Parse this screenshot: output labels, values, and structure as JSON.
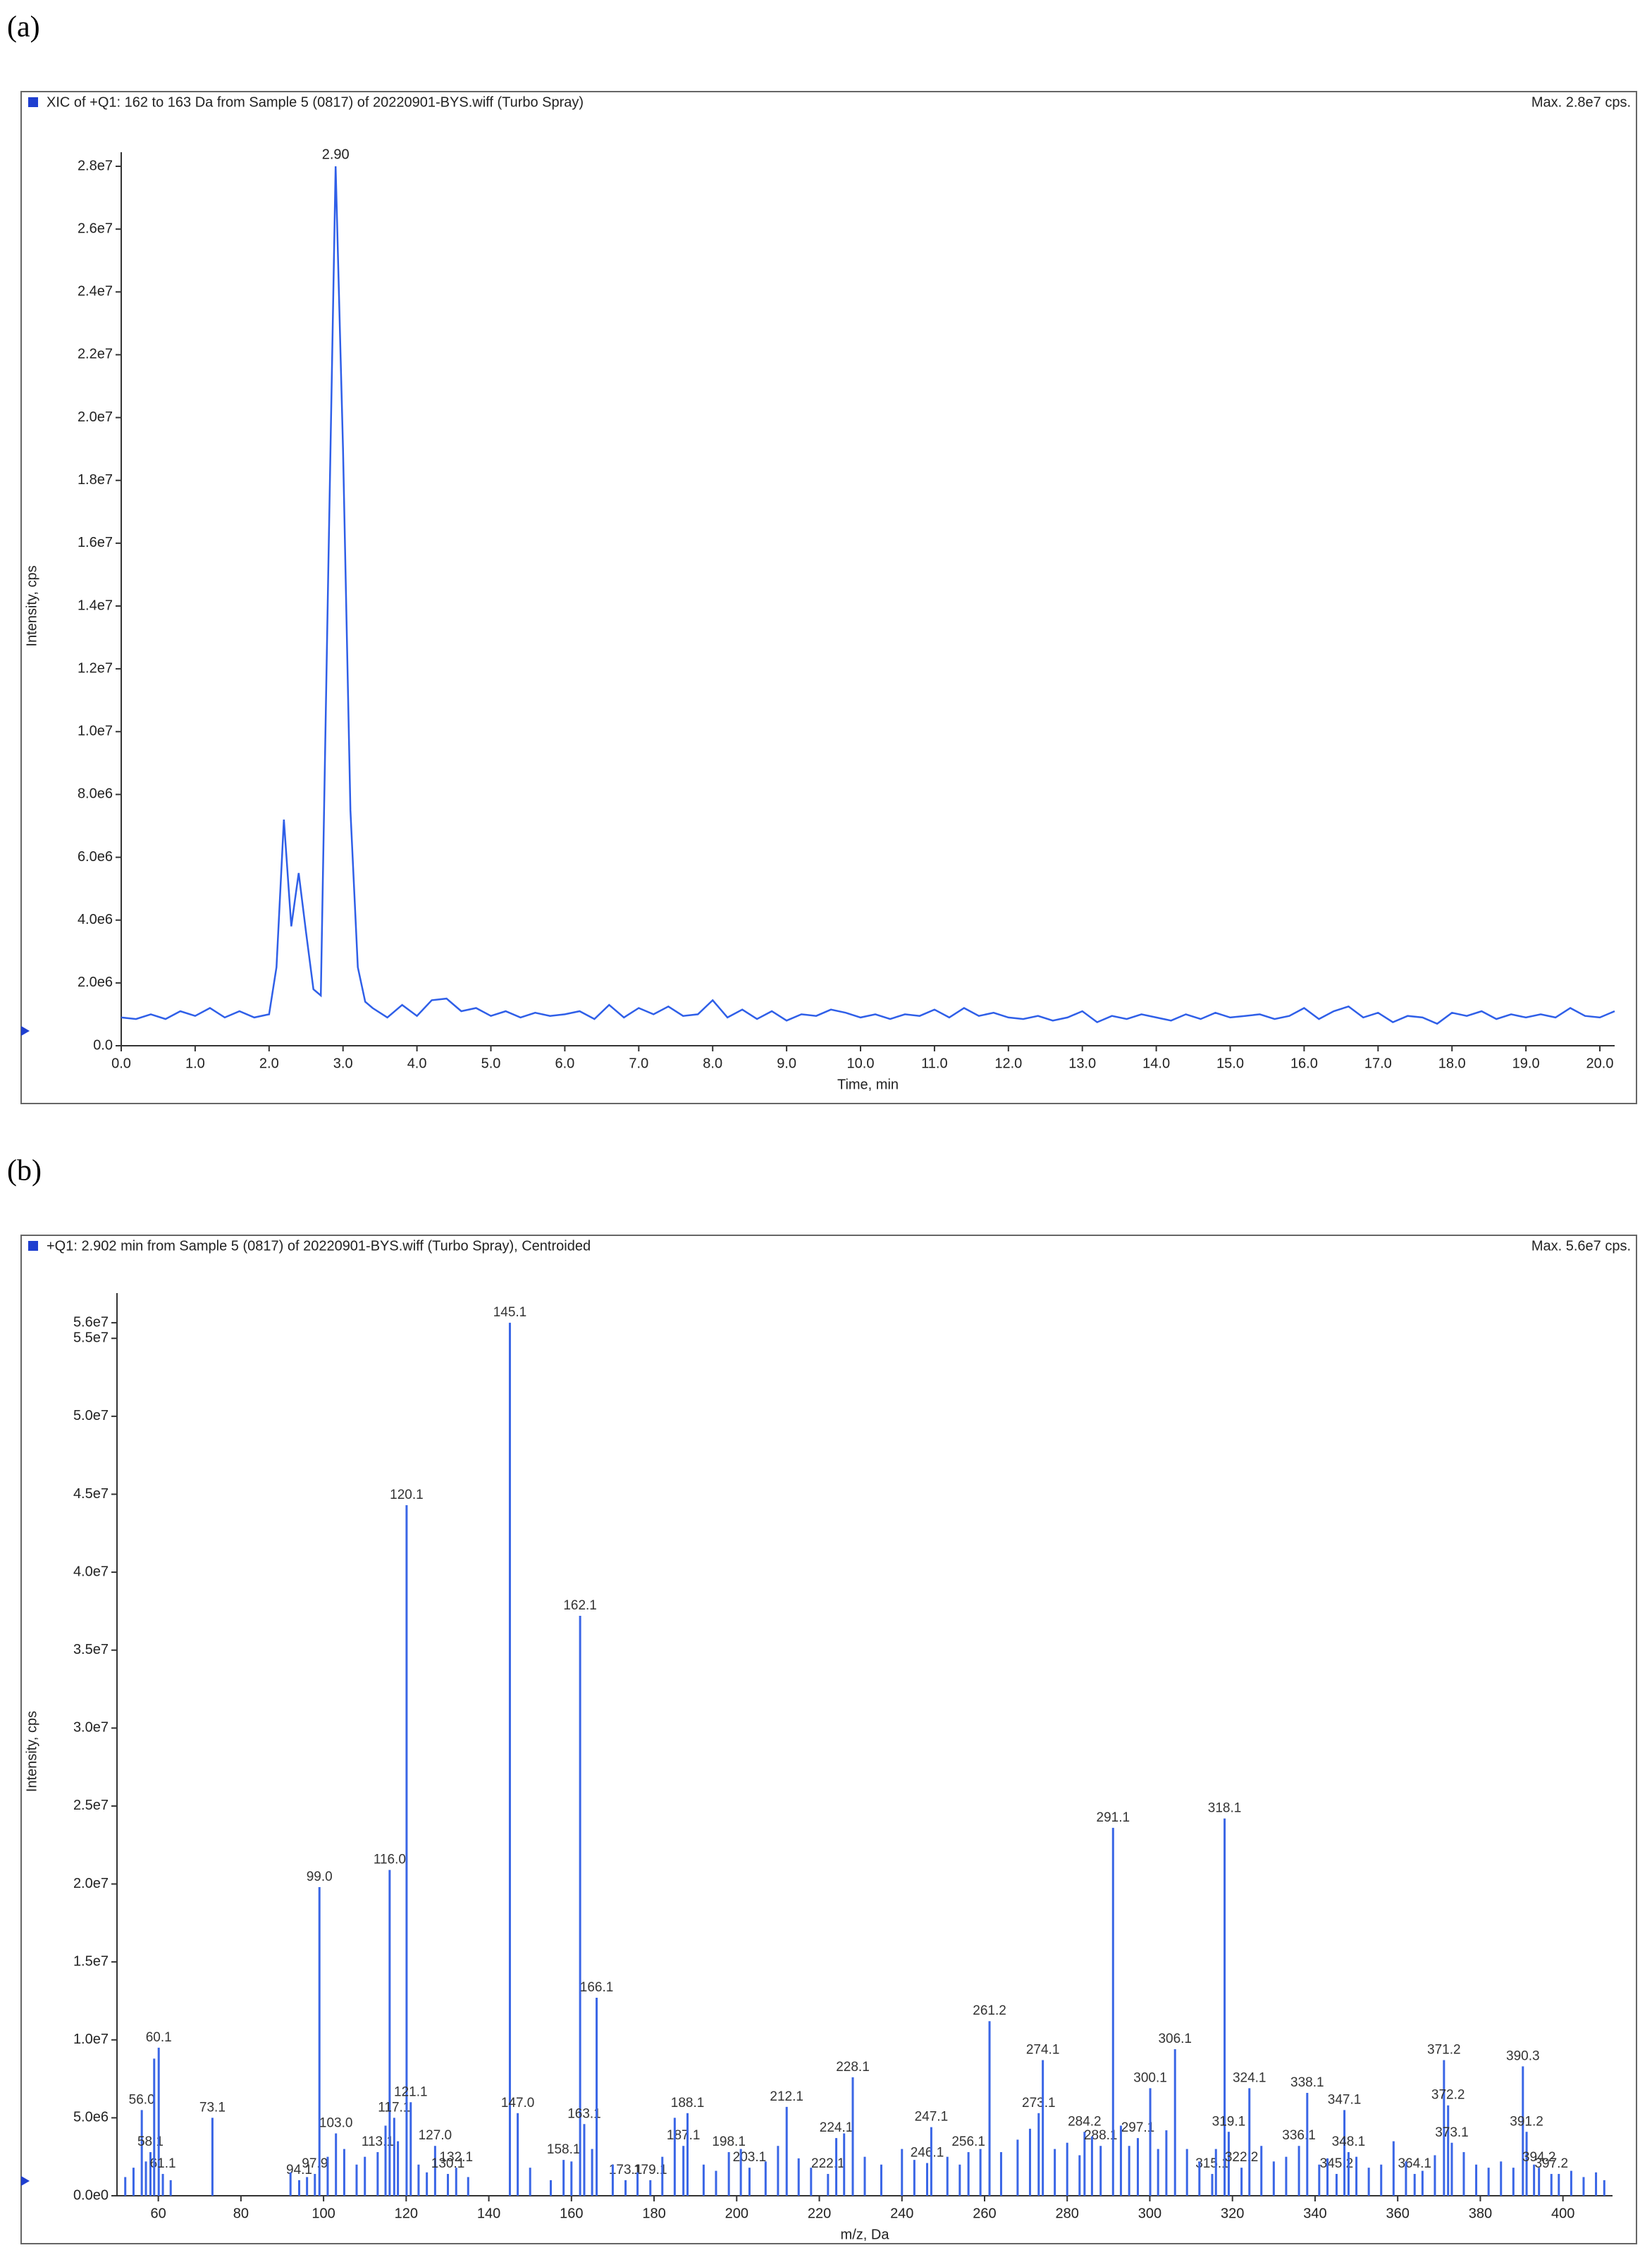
{
  "chart_data": [
    {
      "type": "line",
      "panel_label": "(a)",
      "title": "XIC of +Q1: 162 to 163 Da from Sample 5 (0817) of 20220901-BYS.wiff (Turbo Spray)",
      "max_label": "Max. 2.8e7 cps.",
      "y_label": "Intensity, cps",
      "x_label": "Time, min",
      "color": "#2f5fe8",
      "peak_label": {
        "value": 2.9,
        "label": "2.90"
      },
      "xlim": [
        0,
        20.2
      ],
      "ylim": [
        0,
        28000000
      ],
      "xticks": [
        {
          "value": 0,
          "label": "0.0"
        },
        {
          "value": 1,
          "label": "1.0"
        },
        {
          "value": 2,
          "label": "2.0"
        },
        {
          "value": 3,
          "label": "3.0"
        },
        {
          "value": 4,
          "label": "4.0"
        },
        {
          "value": 5,
          "label": "5.0"
        },
        {
          "value": 6,
          "label": "6.0"
        },
        {
          "value": 7,
          "label": "7.0"
        },
        {
          "value": 8,
          "label": "8.0"
        },
        {
          "value": 9,
          "label": "9.0"
        },
        {
          "value": 10,
          "label": "10.0"
        },
        {
          "value": 11,
          "label": "11.0"
        },
        {
          "value": 12,
          "label": "12.0"
        },
        {
          "value": 13,
          "label": "13.0"
        },
        {
          "value": 14,
          "label": "14.0"
        },
        {
          "value": 15,
          "label": "15.0"
        },
        {
          "value": 16,
          "label": "16.0"
        },
        {
          "value": 17,
          "label": "17.0"
        },
        {
          "value": 18,
          "label": "18.0"
        },
        {
          "value": 19,
          "label": "19.0"
        },
        {
          "value": 20,
          "label": "20.0"
        }
      ],
      "yticks": [
        {
          "value": 0,
          "label": "0.0"
        },
        {
          "value": 2000000,
          "label": "2.0e6"
        },
        {
          "value": 4000000,
          "label": "4.0e6"
        },
        {
          "value": 6000000,
          "label": "6.0e6"
        },
        {
          "value": 8000000,
          "label": "8.0e6"
        },
        {
          "value": 10000000,
          "label": "1.0e7"
        },
        {
          "value": 12000000,
          "label": "1.2e7"
        },
        {
          "value": 14000000,
          "label": "1.4e7"
        },
        {
          "value": 16000000,
          "label": "1.6e7"
        },
        {
          "value": 18000000,
          "label": "1.8e7"
        },
        {
          "value": 20000000,
          "label": "2.0e7"
        },
        {
          "value": 22000000,
          "label": "2.2e7"
        },
        {
          "value": 24000000,
          "label": "2.4e7"
        },
        {
          "value": 26000000,
          "label": "2.6e7"
        },
        {
          "value": 28000000,
          "label": "2.8e7"
        }
      ],
      "x": [
        0,
        0.2,
        0.4,
        0.6,
        0.8,
        1.0,
        1.2,
        1.4,
        1.6,
        1.8,
        2.0,
        2.1,
        2.2,
        2.3,
        2.4,
        2.5,
        2.6,
        2.7,
        2.8,
        2.9,
        3.0,
        3.1,
        3.2,
        3.3,
        3.4,
        3.6,
        3.8,
        4.0,
        4.2,
        4.4,
        4.6,
        4.8,
        5.0,
        5.2,
        5.4,
        5.6,
        5.8,
        6.0,
        6.2,
        6.4,
        6.6,
        6.8,
        7.0,
        7.2,
        7.4,
        7.6,
        7.8,
        8.0,
        8.2,
        8.4,
        8.6,
        8.8,
        9.0,
        9.2,
        9.4,
        9.6,
        9.8,
        10.0,
        10.2,
        10.4,
        10.6,
        10.8,
        11.0,
        11.2,
        11.4,
        11.6,
        11.8,
        12.0,
        12.2,
        12.4,
        12.6,
        12.8,
        13.0,
        13.2,
        13.4,
        13.6,
        13.8,
        14.0,
        14.2,
        14.4,
        14.6,
        14.8,
        15.0,
        15.2,
        15.4,
        15.6,
        15.8,
        16.0,
        16.2,
        16.4,
        16.6,
        16.8,
        17.0,
        17.2,
        17.4,
        17.6,
        17.8,
        18.0,
        18.2,
        18.4,
        18.6,
        18.8,
        19.0,
        19.2,
        19.4,
        19.6,
        19.8,
        20.0,
        20.2
      ],
      "values": [
        900000,
        850000,
        1000000,
        850000,
        1100000,
        950000,
        1200000,
        900000,
        1100000,
        900000,
        1000000,
        2500000,
        7200000,
        3800000,
        5500000,
        3600000,
        1800000,
        1600000,
        15000000,
        28000000,
        19000000,
        7500000,
        2500000,
        1400000,
        1200000,
        900000,
        1300000,
        950000,
        1450000,
        1500000,
        1100000,
        1200000,
        950000,
        1100000,
        900000,
        1050000,
        950000,
        1000000,
        1100000,
        850000,
        1300000,
        900000,
        1200000,
        1000000,
        1250000,
        950000,
        1000000,
        1450000,
        900000,
        1150000,
        850000,
        1100000,
        800000,
        1000000,
        950000,
        1150000,
        1050000,
        900000,
        1000000,
        850000,
        1000000,
        950000,
        1150000,
        900000,
        1200000,
        950000,
        1050000,
        900000,
        850000,
        950000,
        800000,
        900000,
        1100000,
        750000,
        950000,
        850000,
        1000000,
        900000,
        800000,
        1000000,
        850000,
        1050000,
        900000,
        950000,
        1000000,
        850000,
        950000,
        1200000,
        850000,
        1100000,
        1250000,
        900000,
        1050000,
        750000,
        950000,
        900000,
        700000,
        1050000,
        950000,
        1100000,
        850000,
        1000000,
        900000,
        1000000,
        900000,
        1200000,
        950000,
        900000,
        1100000
      ]
    },
    {
      "type": "stem",
      "panel_label": "(b)",
      "title": "+Q1: 2.902 min from Sample 5 (0817) of 20220901-BYS.wiff (Turbo Spray), Centroided",
      "max_label": "Max. 5.6e7 cps.",
      "y_label": "Intensity, cps",
      "x_label": "m/z, Da",
      "color": "#3a66e6",
      "xlim": [
        50,
        412
      ],
      "ylim": [
        0,
        57000000
      ],
      "xticks": [
        60,
        80,
        100,
        120,
        140,
        160,
        180,
        200,
        220,
        240,
        260,
        280,
        300,
        320,
        340,
        360,
        380,
        400
      ],
      "yticks": [
        {
          "value": 0,
          "label": "0.0e0"
        },
        {
          "value": 5000000,
          "label": "5.0e6"
        },
        {
          "value": 10000000,
          "label": "1.0e7"
        },
        {
          "value": 15000000,
          "label": "1.5e7"
        },
        {
          "value": 20000000,
          "label": "2.0e7"
        },
        {
          "value": 25000000,
          "label": "2.5e7"
        },
        {
          "value": 30000000,
          "label": "3.0e7"
        },
        {
          "value": 35000000,
          "label": "3.5e7"
        },
        {
          "value": 40000000,
          "label": "4.0e7"
        },
        {
          "value": 45000000,
          "label": "4.5e7"
        },
        {
          "value": 50000000,
          "label": "5.0e7"
        },
        {
          "value": 55000000,
          "label": "5.5e7"
        },
        {
          "value": 56000000,
          "label": "5.6e7"
        }
      ],
      "x": [
        56.0,
        58.1,
        60.1,
        61.1,
        73.1,
        94.1,
        97.9,
        99.0,
        103.0,
        113.1,
        116.0,
        117.1,
        120.1,
        121.1,
        127.0,
        130.1,
        132.1,
        145.1,
        147.0,
        158.1,
        162.1,
        163.1,
        166.1,
        173.1,
        179.1,
        187.1,
        188.1,
        198.1,
        203.1,
        212.1,
        222.1,
        224.1,
        228.1,
        246.1,
        247.1,
        256.1,
        261.2,
        273.1,
        274.1,
        284.2,
        288.1,
        291.1,
        297.1,
        300.1,
        306.1,
        315.1,
        318.1,
        319.1,
        322.2,
        324.1,
        336.1,
        338.1,
        345.2,
        347.1,
        348.1,
        364.1,
        371.2,
        372.2,
        373.1,
        390.3,
        391.2,
        394.2,
        397.2,
        52,
        54,
        57,
        59,
        63,
        92,
        96,
        101,
        105,
        108,
        110,
        115,
        118,
        123,
        125,
        135,
        150,
        155,
        160,
        165,
        170,
        176,
        182,
        185,
        192,
        195,
        201,
        207,
        210,
        215,
        218,
        226,
        231,
        235,
        240,
        243,
        251,
        254,
        259,
        264,
        268,
        271,
        277,
        280,
        283,
        286,
        293,
        295,
        302,
        304,
        309,
        312,
        316,
        327,
        330,
        333,
        341,
        343,
        350,
        353,
        356,
        359,
        362,
        366,
        369,
        376,
        379,
        382,
        385,
        388,
        393,
        399,
        402,
        405,
        408,
        410
      ],
      "x_labels": [
        "56.0",
        "58.1",
        "60.1",
        "61.1",
        "73.1",
        "94.1",
        "97.9",
        "99.0",
        "103.0",
        "113.1",
        "116.0",
        "117.1",
        "120.1",
        "121.1",
        "127.0",
        "130.1",
        "132.1",
        "145.1",
        "147.0",
        "158.1",
        "162.1",
        "163.1",
        "166.1",
        "173.1",
        "179.1",
        "187.1",
        "188.1",
        "198.1",
        "203.1",
        "212.1",
        "222.1",
        "224.1",
        "228.1",
        "246.1",
        "247.1",
        "256.1",
        "261.2",
        "273.1",
        "274.1",
        "284.2",
        "288.1",
        "291.1",
        "297.1",
        "300.1",
        "306.1",
        "315.1",
        "318.1",
        "319.1",
        "322.2",
        "324.1",
        "336.1",
        "338.1",
        "345.2",
        "347.1",
        "348.1",
        "364.1",
        "371.2",
        "372.2",
        "373.1",
        "390.3",
        "391.2",
        "394.2",
        "397.2",
        null,
        null,
        null,
        null,
        null,
        null,
        null,
        null,
        null,
        null,
        null,
        null,
        null,
        null,
        null,
        null,
        null,
        null,
        null,
        null,
        null,
        null,
        null,
        null,
        null,
        null,
        null,
        null,
        null,
        null,
        null,
        null,
        null,
        null,
        null,
        null,
        null,
        null,
        null,
        null,
        null,
        null,
        null,
        null,
        null,
        null,
        null,
        null,
        null,
        null,
        null,
        null,
        null,
        null,
        null,
        null,
        null,
        null,
        null,
        null,
        null,
        null,
        null,
        null,
        null,
        null,
        null,
        null,
        null,
        null,
        null,
        null,
        null,
        null,
        null,
        null
      ],
      "values": [
        5500000,
        2800000,
        9500000,
        1400000,
        5000000,
        1000000,
        1400000,
        19800000,
        4000000,
        2800000,
        20900000,
        5000000,
        44300000,
        6000000,
        3200000,
        1400000,
        1800000,
        56000000,
        5300000,
        2300000,
        37200000,
        4600000,
        12700000,
        1000000,
        1000000,
        3200000,
        5300000,
        2800000,
        1800000,
        5700000,
        1400000,
        3700000,
        7600000,
        2100000,
        4400000,
        2800000,
        11200000,
        5300000,
        8700000,
        4100000,
        3200000,
        23600000,
        3700000,
        6900000,
        9400000,
        1400000,
        24200000,
        4100000,
        1800000,
        6900000,
        3200000,
        6600000,
        1400000,
        5500000,
        2800000,
        1400000,
        8700000,
        5800000,
        3400000,
        8300000,
        4100000,
        1800000,
        1400000,
        1200000,
        1800000,
        2200000,
        8800000,
        1000000,
        1500000,
        1200000,
        2500000,
        3000000,
        2000000,
        2500000,
        4500000,
        3500000,
        2000000,
        1500000,
        1200000,
        1800000,
        1000000,
        2200000,
        3000000,
        2000000,
        1500000,
        2500000,
        5000000,
        2000000,
        1600000,
        3000000,
        2200000,
        3200000,
        2400000,
        1800000,
        4000000,
        2500000,
        2000000,
        3000000,
        2300000,
        2500000,
        2000000,
        3000000,
        2800000,
        3600000,
        4300000,
        3000000,
        3400000,
        2600000,
        3800000,
        4500000,
        3200000,
        3000000,
        4200000,
        3000000,
        2200000,
        3000000,
        3200000,
        2200000,
        2500000,
        2000000,
        2400000,
        2500000,
        1800000,
        2000000,
        3500000,
        2200000,
        1600000,
        2600000,
        2800000,
        2000000,
        1800000,
        2200000,
        1800000,
        2000000,
        1400000,
        1600000,
        1200000,
        1500000,
        1000000
      ]
    }
  ]
}
